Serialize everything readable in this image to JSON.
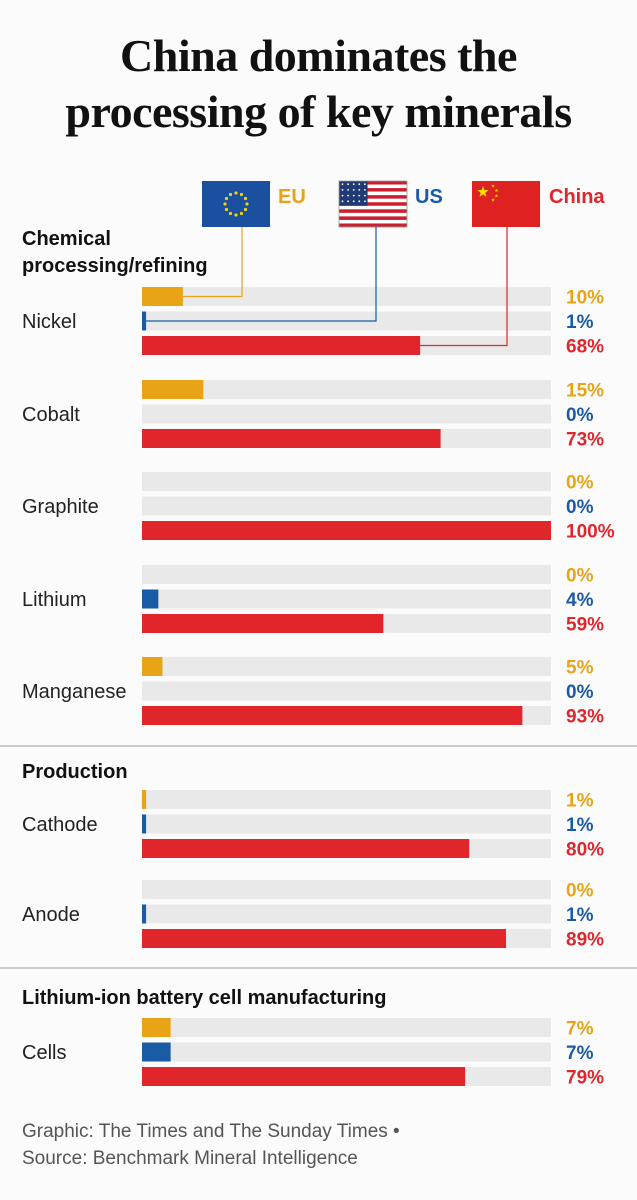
{
  "title": [
    "China dominates the",
    "processing of key minerals"
  ],
  "footer": {
    "credit": "Graphic: The Times and The Sunday Times •",
    "source": "Source: Benchmark Mineral Intelligence"
  },
  "colors": {
    "EU": "#e8a317",
    "US": "#1a5ba6",
    "China": "#e0252b",
    "track": "#e9e9e9"
  },
  "chart_data": {
    "type": "bar",
    "orientation": "horizontal",
    "xlim": [
      0,
      100
    ],
    "unit": "%",
    "legend": [
      {
        "name": "EU",
        "flag": "eu-flag"
      },
      {
        "name": "US",
        "flag": "us-flag"
      },
      {
        "name": "China",
        "flag": "china-flag"
      }
    ],
    "sections": [
      {
        "heading": [
          "Chemical",
          "processing/refining"
        ],
        "items": [
          {
            "name": "Nickel",
            "values": [
              10,
              1,
              68
            ],
            "labels": [
              "10%",
              "1%",
              "68%"
            ]
          },
          {
            "name": "Cobalt",
            "values": [
              15,
              0,
              73
            ],
            "labels": [
              "15%",
              "0%",
              "73%"
            ]
          },
          {
            "name": "Graphite",
            "values": [
              0,
              0,
              100
            ],
            "labels": [
              "0%",
              "0%",
              "100%"
            ]
          },
          {
            "name": "Lithium",
            "values": [
              0,
              4,
              59
            ],
            "labels": [
              "0%",
              "4%",
              "59%"
            ]
          },
          {
            "name": "Manganese",
            "values": [
              5,
              0,
              93
            ],
            "labels": [
              "5%",
              "0%",
              "93%"
            ]
          }
        ]
      },
      {
        "heading": [
          "Production"
        ],
        "items": [
          {
            "name": "Cathode",
            "values": [
              1,
              1,
              80
            ],
            "labels": [
              "1%",
              "1%",
              "80%"
            ]
          },
          {
            "name": "Anode",
            "values": [
              0,
              1,
              89
            ],
            "labels": [
              "0%",
              "1%",
              "89%"
            ]
          }
        ]
      },
      {
        "heading": [
          "Lithium-ion battery cell manufacturing"
        ],
        "items": [
          {
            "name": "Cells",
            "values": [
              7,
              7,
              79
            ],
            "labels": [
              "7%",
              "7%",
              "79%"
            ]
          }
        ]
      }
    ]
  }
}
